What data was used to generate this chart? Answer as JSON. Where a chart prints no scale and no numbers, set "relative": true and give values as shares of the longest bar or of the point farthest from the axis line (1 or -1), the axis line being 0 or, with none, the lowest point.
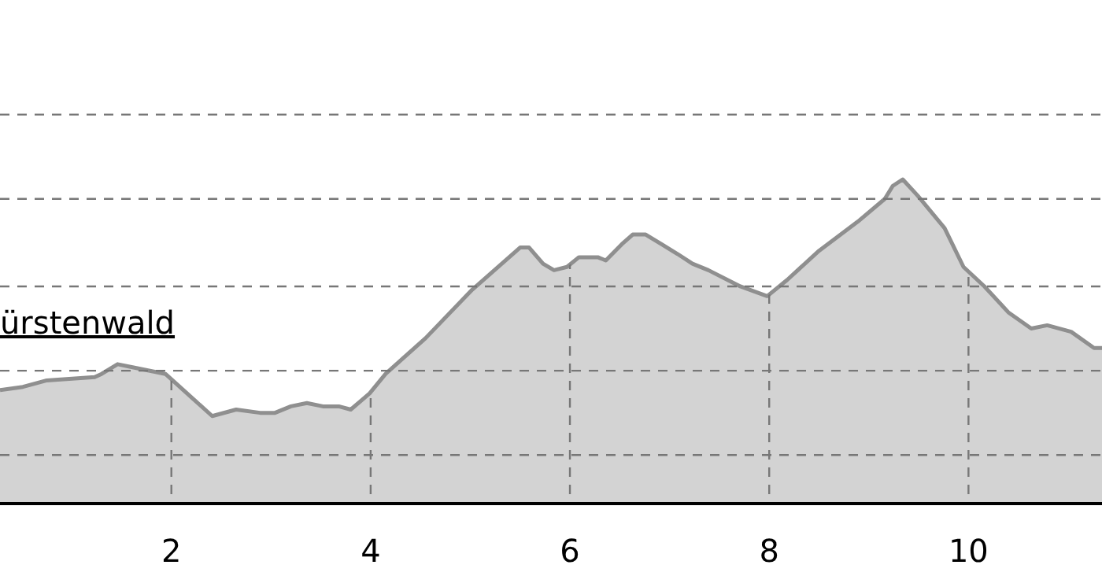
{
  "chart_data": {
    "type": "area",
    "relative": true,
    "color": "#d3d3d3",
    "grid": true,
    "x": [
      0.28,
      0.51,
      0.75,
      1.23,
      1.3,
      1.46,
      1.62,
      1.94,
      2.41,
      2.65,
      2.89,
      3.04,
      3.2,
      3.36,
      3.52,
      3.68,
      3.8,
      3.99,
      4.15,
      4.55,
      5.02,
      5.5,
      5.59,
      5.73,
      5.84,
      5.97,
      6.09,
      6.28,
      6.36,
      6.52,
      6.63,
      6.76,
      6.92,
      7.08,
      7.23,
      7.39,
      7.71,
      7.98,
      8.18,
      8.5,
      8.89,
      9.16,
      9.24,
      9.34,
      9.49,
      9.76,
      9.95,
      10.16,
      10.4,
      10.63,
      10.79,
      11.03,
      11.26,
      11.34
    ],
    "values": [
      0.35,
      0.36,
      0.38,
      0.39,
      0.4,
      0.43,
      0.42,
      0.4,
      0.27,
      0.29,
      0.28,
      0.28,
      0.3,
      0.31,
      0.3,
      0.3,
      0.29,
      0.34,
      0.4,
      0.51,
      0.66,
      0.79,
      0.79,
      0.74,
      0.72,
      0.73,
      0.76,
      0.76,
      0.75,
      0.8,
      0.83,
      0.83,
      0.8,
      0.77,
      0.74,
      0.72,
      0.67,
      0.64,
      0.69,
      0.78,
      0.87,
      0.94,
      0.98,
      1,
      0.95,
      0.85,
      0.73,
      0.67,
      0.59,
      0.54,
      0.55,
      0.53,
      0.48,
      0.48
    ],
    "xlim": [
      0.28,
      11.34
    ],
    "xticks": [
      2,
      4,
      6,
      8,
      10
    ],
    "annotations": [
      "ürstenwald"
    ]
  }
}
